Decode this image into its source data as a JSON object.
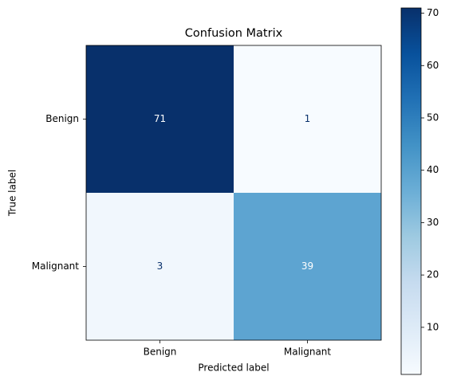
{
  "chart_data": {
    "type": "heatmap",
    "title": "Confusion Matrix",
    "x_label": "Predicted label",
    "y_label": "True label",
    "categories": [
      "Benign",
      "Malignant"
    ],
    "y_categories": [
      "Benign",
      "Malignant"
    ],
    "values": [
      [
        71,
        1
      ],
      [
        3,
        39
      ]
    ],
    "colormap": "Blues",
    "zlim": [
      1,
      71
    ],
    "zticks": [
      10,
      20,
      30,
      40,
      50,
      60,
      70
    ]
  }
}
